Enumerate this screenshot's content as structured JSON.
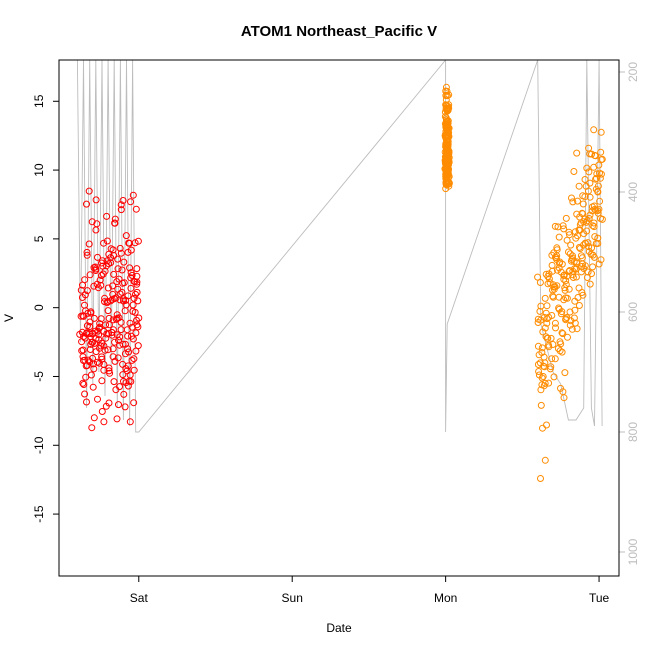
{
  "chart_data": {
    "type": "scatter",
    "title": "ATOM1 Northeast_Pacific V",
    "xlabel": "Date",
    "ylabel": "V",
    "x_ticks": [
      "Sat",
      "Sun",
      "Mon",
      "Tue"
    ],
    "x_tick_days": [
      1,
      2,
      3,
      4
    ],
    "xlim_days": [
      0.48,
      4.13
    ],
    "ylim": [
      -19.5,
      18
    ],
    "y_ticks": [
      -15,
      -10,
      -5,
      0,
      5,
      10,
      15
    ],
    "y2_ticks": [
      200,
      400,
      600,
      800,
      1000
    ],
    "y2lim": [
      180,
      1040
    ],
    "grid": false,
    "colors": {
      "series_1": "#ff0000",
      "series_2": "#ff8c00",
      "depth_track": "#bdbdbd"
    },
    "series": [
      {
        "color": "#ff0000",
        "segments": [
          {
            "x": [
              0.62,
              1.0
            ],
            "y_min": [
              -9.9,
              -9.9
            ],
            "y_max": [
              9.9,
              9.9
            ],
            "center": [
              -1.5,
              0.0
            ]
          }
        ]
      },
      {
        "color": "#ff8c00",
        "segments": [
          {
            "x": [
              3.0,
              3.02
            ],
            "y_min": [
              8.0,
              8.0
            ],
            "y_max": [
              16.8,
              16.8
            ],
            "center": [
              11.0,
              11.0
            ]
          },
          {
            "x": [
              3.6,
              4.02
            ],
            "y_min": [
              -18.0,
              3.0
            ],
            "y_max": [
              6.0,
              15.8
            ],
            "center": [
              -3.0,
              9.0
            ]
          }
        ]
      }
    ],
    "depth_track": {
      "axis": "right",
      "x": [
        0.6,
        0.62,
        0.64,
        0.66,
        0.68,
        0.7,
        0.72,
        0.74,
        0.76,
        0.78,
        0.8,
        0.82,
        0.84,
        0.86,
        0.88,
        0.9,
        0.92,
        0.94,
        0.96,
        0.98,
        1.0,
        3.0,
        3.0,
        3.01,
        3.6,
        3.62,
        3.7,
        3.75,
        3.8,
        3.85,
        3.9,
        3.92,
        3.95,
        3.97,
        4.0,
        4.02
      ],
      "depth": [
        180,
        650,
        180,
        760,
        180,
        720,
        180,
        700,
        180,
        740,
        180,
        690,
        180,
        760,
        180,
        780,
        180,
        790,
        180,
        800,
        800,
        180,
        800,
        620,
        180,
        620,
        700,
        720,
        780,
        780,
        760,
        180,
        760,
        790,
        180,
        790
      ]
    }
  }
}
